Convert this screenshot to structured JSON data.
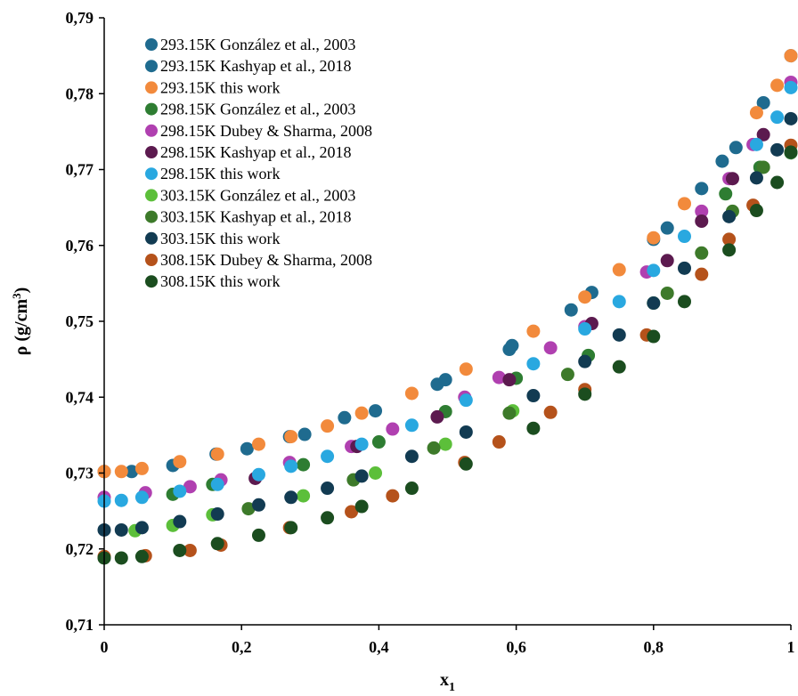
{
  "chart_data": {
    "type": "scatter",
    "title": "",
    "xlabel": "x",
    "xlabel_sub": "1",
    "ylabel": "ρ (g/cm",
    "ylabel_sup": "3",
    "ylabel_close": ")",
    "xlim": [
      0,
      1
    ],
    "ylim": [
      0.71,
      0.79
    ],
    "x_ticks": [
      0,
      0.2,
      0.4,
      0.6,
      0.8,
      1
    ],
    "x_tick_labels": [
      "0",
      "0,2",
      "0,4",
      "0,6",
      "0,8",
      "1"
    ],
    "y_ticks": [
      0.71,
      0.72,
      0.73,
      0.74,
      0.75,
      0.76,
      0.77,
      0.78,
      0.79
    ],
    "y_tick_labels": [
      "0,71",
      "0,72",
      "0,73",
      "0,74",
      "0,75",
      "0,76",
      "0,77",
      "0,78",
      "0,79"
    ],
    "grid": false,
    "legend_position": "top-left",
    "series": [
      {
        "name": "293.15K González et al., 2003",
        "color": "#1f6b8f",
        "points": [
          [
            0,
            0.7302
          ],
          [
            0.04,
            0.7302
          ],
          [
            0.1,
            0.731
          ],
          [
            0.163,
            0.7325
          ],
          [
            0.208,
            0.7332
          ],
          [
            0.27,
            0.7348
          ],
          [
            0.292,
            0.7351
          ],
          [
            0.35,
            0.7373
          ],
          [
            0.395,
            0.7382
          ],
          [
            0.485,
            0.7417
          ],
          [
            0.497,
            0.7423
          ],
          [
            0.59,
            0.7463
          ],
          [
            0.594,
            0.7468
          ],
          [
            0.68,
            0.7515
          ],
          [
            0.71,
            0.7538
          ],
          [
            0.8,
            0.7608
          ],
          [
            0.82,
            0.7623
          ],
          [
            0.87,
            0.7675
          ],
          [
            0.9,
            0.7711
          ],
          [
            0.92,
            0.7729
          ],
          [
            0.96,
            0.7788
          ],
          [
            1,
            0.785
          ]
        ]
      },
      {
        "name": "293.15K Kashyap et al., 2018",
        "color": "#1f6b8f",
        "points": []
      },
      {
        "name": "293.15K this work",
        "color": "#f28a3c",
        "points": [
          [
            0,
            0.7302
          ],
          [
            0.025,
            0.7302
          ],
          [
            0.055,
            0.7306
          ],
          [
            0.11,
            0.7315
          ],
          [
            0.165,
            0.7325
          ],
          [
            0.225,
            0.7338
          ],
          [
            0.272,
            0.7348
          ],
          [
            0.325,
            0.7362
          ],
          [
            0.375,
            0.7379
          ],
          [
            0.448,
            0.7405
          ],
          [
            0.527,
            0.7437
          ],
          [
            0.625,
            0.7487
          ],
          [
            0.7,
            0.7532
          ],
          [
            0.75,
            0.7568
          ],
          [
            0.8,
            0.761
          ],
          [
            0.845,
            0.7655
          ],
          [
            0.95,
            0.7775
          ],
          [
            0.98,
            0.7811
          ],
          [
            1,
            0.785
          ]
        ]
      },
      {
        "name": "298.15K González et al., 2003",
        "color": "#2e7d32",
        "points": [
          [
            0.1,
            0.7272
          ],
          [
            0.158,
            0.7285
          ],
          [
            0.29,
            0.7311
          ],
          [
            0.4,
            0.7341
          ],
          [
            0.497,
            0.7381
          ],
          [
            0.6,
            0.7425
          ],
          [
            0.705,
            0.7455
          ],
          [
            0.905,
            0.7668
          ],
          [
            0.955,
            0.7703
          ],
          [
            1,
            0.7722
          ]
        ]
      },
      {
        "name": "298.15K Dubey & Sharma, 2008",
        "color": "#b040b0",
        "points": [
          [
            0,
            0.7268
          ],
          [
            0.06,
            0.7274
          ],
          [
            0.125,
            0.7282
          ],
          [
            0.17,
            0.7291
          ],
          [
            0.27,
            0.7314
          ],
          [
            0.36,
            0.7335
          ],
          [
            0.42,
            0.7358
          ],
          [
            0.525,
            0.74
          ],
          [
            0.575,
            0.7426
          ],
          [
            0.65,
            0.7465
          ],
          [
            0.7,
            0.7493
          ],
          [
            0.79,
            0.7565
          ],
          [
            0.87,
            0.7645
          ],
          [
            0.91,
            0.7688
          ],
          [
            0.945,
            0.7733
          ],
          [
            1,
            0.7815
          ]
        ]
      },
      {
        "name": "298.15K Kashyap et al., 2018",
        "color": "#5c1a4f",
        "points": [
          [
            0.22,
            0.7293
          ],
          [
            0.368,
            0.7335
          ],
          [
            0.485,
            0.7374
          ],
          [
            0.59,
            0.7423
          ],
          [
            0.71,
            0.7497
          ],
          [
            0.82,
            0.758
          ],
          [
            0.87,
            0.7632
          ],
          [
            0.915,
            0.7688
          ],
          [
            0.96,
            0.7746
          ]
        ]
      },
      {
        "name": "298.15K this work",
        "color": "#29a8e0",
        "points": [
          [
            0,
            0.7263
          ],
          [
            0.025,
            0.7264
          ],
          [
            0.055,
            0.7268
          ],
          [
            0.11,
            0.7276
          ],
          [
            0.165,
            0.7285
          ],
          [
            0.225,
            0.7298
          ],
          [
            0.272,
            0.7309
          ],
          [
            0.325,
            0.7322
          ],
          [
            0.375,
            0.7338
          ],
          [
            0.448,
            0.7363
          ],
          [
            0.527,
            0.7396
          ],
          [
            0.625,
            0.7444
          ],
          [
            0.7,
            0.749
          ],
          [
            0.75,
            0.7526
          ],
          [
            0.8,
            0.7567
          ],
          [
            0.845,
            0.7612
          ],
          [
            0.95,
            0.7733
          ],
          [
            0.98,
            0.7769
          ],
          [
            1,
            0.7808
          ]
        ]
      },
      {
        "name": "303.15K González et al., 2003",
        "color": "#5cbf3a",
        "points": [
          [
            0.045,
            0.7224
          ],
          [
            0.1,
            0.7231
          ],
          [
            0.158,
            0.7245
          ],
          [
            0.29,
            0.727
          ],
          [
            0.395,
            0.73
          ],
          [
            0.497,
            0.7338
          ],
          [
            0.595,
            0.7382
          ],
          [
            0.8,
            0.7524
          ]
        ]
      },
      {
        "name": "303.15K Kashyap et al., 2018",
        "color": "#3d7a2a",
        "points": [
          [
            0.21,
            0.7253
          ],
          [
            0.363,
            0.7291
          ],
          [
            0.48,
            0.7333
          ],
          [
            0.59,
            0.7379
          ],
          [
            0.675,
            0.743
          ],
          [
            0.82,
            0.7537
          ],
          [
            0.87,
            0.759
          ],
          [
            0.915,
            0.7645
          ],
          [
            0.96,
            0.7703
          ]
        ]
      },
      {
        "name": "303.15K this work",
        "color": "#123b52",
        "points": [
          [
            0,
            0.7225
          ],
          [
            0.025,
            0.7225
          ],
          [
            0.055,
            0.7228
          ],
          [
            0.11,
            0.7236
          ],
          [
            0.165,
            0.7246
          ],
          [
            0.225,
            0.7258
          ],
          [
            0.272,
            0.7268
          ],
          [
            0.325,
            0.728
          ],
          [
            0.375,
            0.7296
          ],
          [
            0.448,
            0.7322
          ],
          [
            0.527,
            0.7354
          ],
          [
            0.625,
            0.7402
          ],
          [
            0.7,
            0.7447
          ],
          [
            0.75,
            0.7482
          ],
          [
            0.8,
            0.7524
          ],
          [
            0.845,
            0.757
          ],
          [
            0.91,
            0.7638
          ],
          [
            0.95,
            0.7689
          ],
          [
            0.98,
            0.7726
          ],
          [
            1,
            0.7767
          ]
        ]
      },
      {
        "name": "308.15K Dubey & Sharma, 2008",
        "color": "#b5521b",
        "points": [
          [
            0,
            0.719
          ],
          [
            0.06,
            0.7191
          ],
          [
            0.125,
            0.7198
          ],
          [
            0.17,
            0.7205
          ],
          [
            0.27,
            0.7228
          ],
          [
            0.36,
            0.7249
          ],
          [
            0.42,
            0.727
          ],
          [
            0.525,
            0.7314
          ],
          [
            0.575,
            0.7341
          ],
          [
            0.65,
            0.738
          ],
          [
            0.7,
            0.741
          ],
          [
            0.79,
            0.7482
          ],
          [
            0.87,
            0.7562
          ],
          [
            0.91,
            0.7608
          ],
          [
            0.945,
            0.7653
          ],
          [
            1,
            0.7732
          ]
        ]
      },
      {
        "name": "308.15K this work",
        "color": "#1b4d1f",
        "points": [
          [
            0,
            0.7188
          ],
          [
            0.025,
            0.7188
          ],
          [
            0.055,
            0.719
          ],
          [
            0.11,
            0.7198
          ],
          [
            0.165,
            0.7207
          ],
          [
            0.225,
            0.7218
          ],
          [
            0.272,
            0.7228
          ],
          [
            0.325,
            0.7241
          ],
          [
            0.375,
            0.7256
          ],
          [
            0.448,
            0.728
          ],
          [
            0.527,
            0.7312
          ],
          [
            0.625,
            0.7359
          ],
          [
            0.7,
            0.7404
          ],
          [
            0.75,
            0.744
          ],
          [
            0.8,
            0.748
          ],
          [
            0.845,
            0.7526
          ],
          [
            0.91,
            0.7594
          ],
          [
            0.95,
            0.7646
          ],
          [
            0.98,
            0.7683
          ],
          [
            1,
            0.7723
          ]
        ]
      }
    ]
  }
}
